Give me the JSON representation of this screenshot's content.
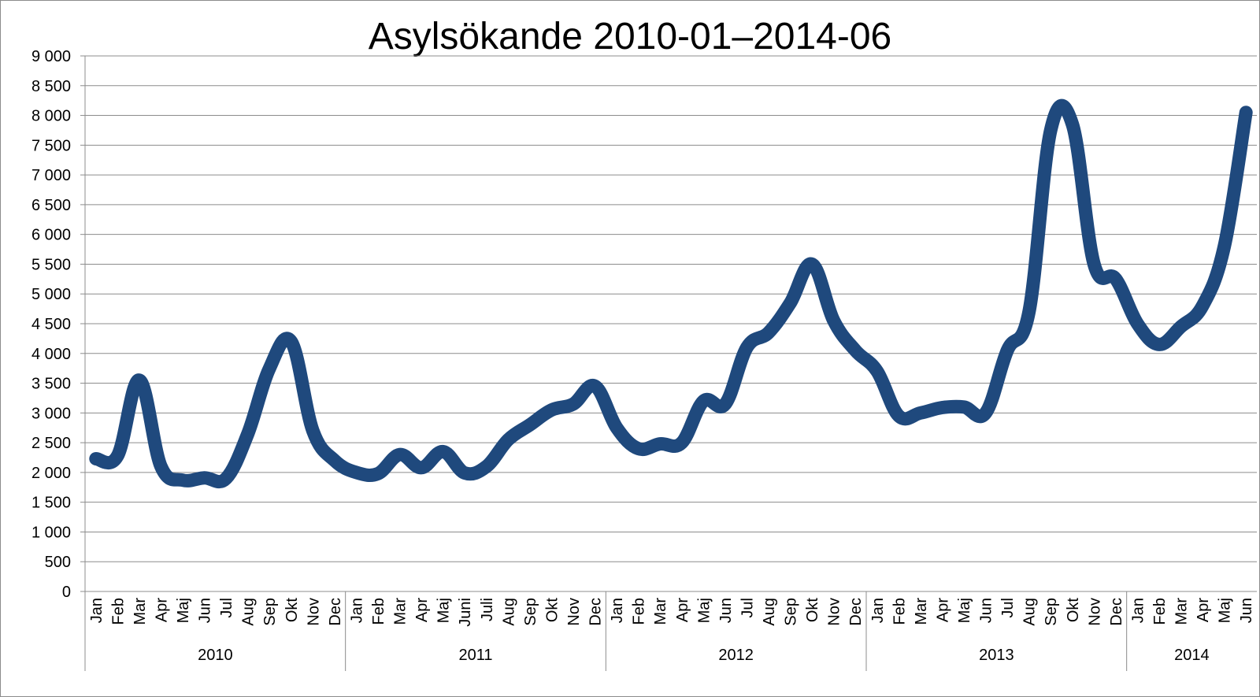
{
  "chart_data": {
    "type": "line",
    "title": "Asylsökande 2010-01–2014-06",
    "xlabel": "",
    "ylabel": "",
    "ylim": [
      0,
      9000
    ],
    "y_ticks": [
      {
        "value": 0,
        "label": "0"
      },
      {
        "value": 500,
        "label": "500"
      },
      {
        "value": 1000,
        "label": "1 000"
      },
      {
        "value": 1500,
        "label": "1 500"
      },
      {
        "value": 2000,
        "label": "2 000"
      },
      {
        "value": 2500,
        "label": "2 500"
      },
      {
        "value": 3000,
        "label": "3 000"
      },
      {
        "value": 3500,
        "label": "3 500"
      },
      {
        "value": 4000,
        "label": "4 000"
      },
      {
        "value": 4500,
        "label": "4 500"
      },
      {
        "value": 5000,
        "label": "5 000"
      },
      {
        "value": 5500,
        "label": "5 500"
      },
      {
        "value": 6000,
        "label": "6 000"
      },
      {
        "value": 6500,
        "label": "6 500"
      },
      {
        "value": 7000,
        "label": "7 000"
      },
      {
        "value": 7500,
        "label": "7 500"
      },
      {
        "value": 8000,
        "label": "8 000"
      },
      {
        "value": 8500,
        "label": "8 500"
      },
      {
        "value": 9000,
        "label": "9 000"
      }
    ],
    "grid": true,
    "legend": "none",
    "line_color": "#1f497d",
    "groups": [
      {
        "label": "2010",
        "months": [
          "Jan",
          "Feb",
          "Mar",
          "Apr",
          "Maj",
          "Jun",
          "Jul",
          "Aug",
          "Sep",
          "Okt",
          "Nov",
          "Dec"
        ]
      },
      {
        "label": "2011",
        "months": [
          "Jan",
          "Feb",
          "Mar",
          "Apr",
          "Maj",
          "Juni",
          "Juli",
          "Aug",
          "Sep",
          "Okt",
          "Nov",
          "Dec"
        ]
      },
      {
        "label": "2012",
        "months": [
          "Jan",
          "Feb",
          "Mar",
          "Apr",
          "Maj",
          "Jun",
          "Jul",
          "Aug",
          "Sep",
          "Okt",
          "Nov",
          "Dec"
        ]
      },
      {
        "label": "2013",
        "months": [
          "Jan",
          "Feb",
          "Mar",
          "Apr",
          "Maj",
          "Jun",
          "Jul",
          "Aug",
          "Sep",
          "Okt",
          "Nov",
          "Dec"
        ]
      },
      {
        "label": "2014",
        "months": [
          "Jan",
          "Feb",
          "Mar",
          "Apr",
          "Maj",
          "Jun"
        ]
      }
    ],
    "values": [
      2230,
      2280,
      3550,
      2100,
      1870,
      1910,
      1900,
      2650,
      3750,
      4200,
      2700,
      2200,
      2000,
      1980,
      2300,
      2080,
      2350,
      1990,
      2100,
      2550,
      2800,
      3050,
      3150,
      3450,
      2750,
      2400,
      2480,
      2500,
      3200,
      3150,
      4100,
      4350,
      4850,
      5500,
      4550,
      4050,
      3700,
      2950,
      3000,
      3090,
      3100,
      3000,
      4050,
      4700,
      7750,
      7850,
      5500,
      5250,
      4500,
      4150,
      4450,
      4800,
      5800,
      8050
    ]
  }
}
